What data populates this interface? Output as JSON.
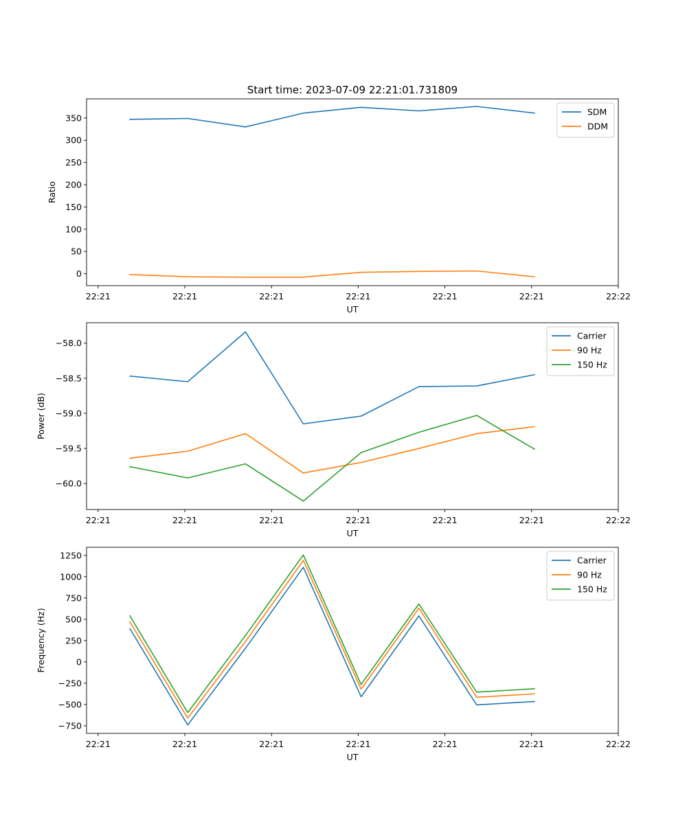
{
  "figure_title": "Start time: 2023-07-09 22:21:01.731809",
  "colors": {
    "blue": "#1f77b4",
    "orange": "#ff7f0e",
    "green": "#2ca02c"
  },
  "chart_data": [
    {
      "type": "line",
      "title": "Start time: 2023-07-09 22:21:01.731809",
      "xlabel": "UT",
      "ylabel": "Ratio",
      "x": [
        1,
        2,
        3,
        4,
        5,
        6,
        7,
        8
      ],
      "xlim": [
        0.25,
        9.45
      ],
      "x_tick_positions": [
        0.45,
        1.95,
        3.45,
        4.95,
        6.45,
        7.95,
        9.45
      ],
      "x_tick_labels": [
        "22:21",
        "22:21",
        "22:21",
        "22:21",
        "22:21",
        "22:21",
        "22:22"
      ],
      "ylim": [
        -27,
        393
      ],
      "y_ticks": [
        0,
        50,
        100,
        150,
        200,
        250,
        300,
        350
      ],
      "y_tick_labels": [
        "0",
        "50",
        "100",
        "150",
        "200",
        "250",
        "300",
        "350"
      ],
      "legend_position": "top-right",
      "series": [
        {
          "name": "SDM",
          "color": "#1f77b4",
          "values": [
            347,
            349,
            330,
            361,
            374,
            366,
            376,
            361
          ]
        },
        {
          "name": "DDM",
          "color": "#ff7f0e",
          "values": [
            -2,
            -7,
            -8,
            -8,
            3,
            5,
            6,
            -7
          ]
        }
      ]
    },
    {
      "type": "line",
      "title": "",
      "xlabel": "UT",
      "ylabel": "Power (dB)",
      "x": [
        1,
        2,
        3,
        4,
        5,
        6,
        7,
        8
      ],
      "xlim": [
        0.25,
        9.45
      ],
      "x_tick_positions": [
        0.45,
        1.95,
        3.45,
        4.95,
        6.45,
        7.95,
        9.45
      ],
      "x_tick_labels": [
        "22:21",
        "22:21",
        "22:21",
        "22:21",
        "22:21",
        "22:21",
        "22:22"
      ],
      "ylim": [
        -60.37,
        -57.71
      ],
      "y_ticks": [
        -60.0,
        -59.5,
        -59.0,
        -58.5,
        -58.0
      ],
      "y_tick_labels": [
        "−60.0",
        "−59.5",
        "−59.0",
        "−58.5",
        "−58.0"
      ],
      "legend_position": "top-right",
      "series": [
        {
          "name": "Carrier",
          "color": "#1f77b4",
          "values": [
            -58.47,
            -58.55,
            -57.84,
            -59.15,
            -59.04,
            -58.62,
            -58.61,
            -58.45
          ]
        },
        {
          "name": "90 Hz",
          "color": "#ff7f0e",
          "values": [
            -59.64,
            -59.54,
            -59.29,
            -59.85,
            -59.7,
            -59.5,
            -59.29,
            -59.19
          ]
        },
        {
          "name": "150 Hz",
          "color": "#2ca02c",
          "values": [
            -59.76,
            -59.92,
            -59.72,
            -60.25,
            -59.56,
            -59.27,
            -59.03,
            -59.51
          ]
        }
      ]
    },
    {
      "type": "line",
      "title": "",
      "xlabel": "UT",
      "ylabel": "Frequency (Hz)",
      "x": [
        1,
        2,
        3,
        4,
        5,
        6,
        7,
        8
      ],
      "xlim": [
        0.25,
        9.45
      ],
      "x_tick_positions": [
        0.45,
        1.95,
        3.45,
        4.95,
        6.45,
        7.95,
        9.45
      ],
      "x_tick_labels": [
        "22:21",
        "22:21",
        "22:21",
        "22:21",
        "22:21",
        "22:21",
        "22:22"
      ],
      "ylim": [
        -839,
        1345
      ],
      "y_ticks": [
        -750,
        -500,
        -250,
        0,
        250,
        500,
        750,
        1000,
        1250
      ],
      "y_tick_labels": [
        "−750",
        "−500",
        "−250",
        "0",
        "250",
        "500",
        "750",
        "1000",
        "1250"
      ],
      "legend_position": "top-right",
      "series": [
        {
          "name": "Carrier",
          "color": "#1f77b4",
          "values": [
            390,
            -740,
            160,
            1110,
            -410,
            540,
            -505,
            -465
          ]
        },
        {
          "name": "90 Hz",
          "color": "#ff7f0e",
          "values": [
            470,
            -660,
            240,
            1190,
            -320,
            630,
            -415,
            -375
          ]
        },
        {
          "name": "150 Hz",
          "color": "#2ca02c",
          "values": [
            540,
            -595,
            310,
            1255,
            -265,
            680,
            -355,
            -315
          ]
        }
      ]
    }
  ]
}
